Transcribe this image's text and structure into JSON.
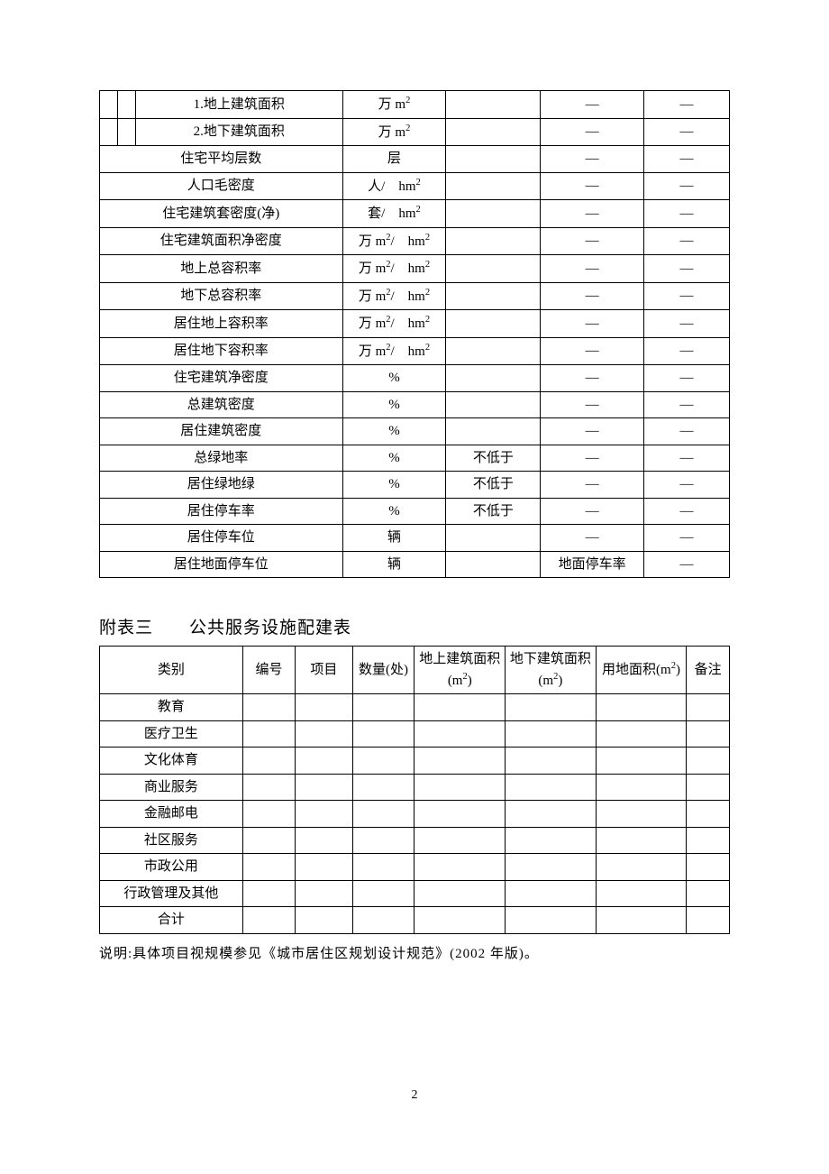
{
  "table1": {
    "rows": [
      {
        "indent": 2,
        "label": "1.地上建筑面积",
        "unit": "万 m²",
        "col3": "",
        "col4": "—",
        "col5": "—"
      },
      {
        "indent": 2,
        "label": "2.地下建筑面积",
        "unit": "万 m²",
        "col3": "",
        "col4": "—",
        "col5": "—"
      },
      {
        "indent": 0,
        "label": "住宅平均层数",
        "unit": "层",
        "col3": "",
        "col4": "—",
        "col5": "—"
      },
      {
        "indent": 0,
        "label": "人口毛密度",
        "unit": "人/　hm²",
        "col3": "",
        "col4": "—",
        "col5": "—"
      },
      {
        "indent": 0,
        "label": "住宅建筑套密度(净)",
        "unit": "套/　hm²",
        "col3": "",
        "col4": "—",
        "col5": "—"
      },
      {
        "indent": 0,
        "label": "住宅建筑面积净密度",
        "unit": "万 m²/　hm²",
        "col3": "",
        "col4": "—",
        "col5": "—"
      },
      {
        "indent": 0,
        "label": "地上总容积率",
        "unit": "万 m²/　hm²",
        "col3": "",
        "col4": "—",
        "col5": "—"
      },
      {
        "indent": 0,
        "label": "地下总容积率",
        "unit": "万 m²/　hm²",
        "col3": "",
        "col4": "—",
        "col5": "—"
      },
      {
        "indent": 0,
        "label": "居住地上容积率",
        "unit": "万 m²/　hm²",
        "col3": "",
        "col4": "—",
        "col5": "—"
      },
      {
        "indent": 0,
        "label": "居住地下容积率",
        "unit": "万 m²/　hm²",
        "col3": "",
        "col4": "—",
        "col5": "—"
      },
      {
        "indent": 0,
        "label": "住宅建筑净密度",
        "unit": "%",
        "col3": "",
        "col4": "—",
        "col5": "—"
      },
      {
        "indent": 0,
        "label": "总建筑密度",
        "unit": "%",
        "col3": "",
        "col4": "—",
        "col5": "—"
      },
      {
        "indent": 0,
        "label": "居住建筑密度",
        "unit": "%",
        "col3": "",
        "col4": "—",
        "col5": "—"
      },
      {
        "indent": 0,
        "label": "总绿地率",
        "unit": "%",
        "col3": "不低于",
        "col4": "—",
        "col5": "—"
      },
      {
        "indent": 0,
        "label": "居住绿地绿",
        "unit": "%",
        "col3": "不低于",
        "col4": "—",
        "col5": "—"
      },
      {
        "indent": 0,
        "label": "居住停车率",
        "unit": "%",
        "col3": "不低于",
        "col4": "—",
        "col5": "—"
      },
      {
        "indent": 0,
        "label": "居住停车位",
        "unit": "辆",
        "col3": "",
        "col4": "—",
        "col5": "—"
      },
      {
        "indent": 0,
        "label": "居住地面停车位",
        "unit": "辆",
        "col3": "",
        "col4": "地面停车率",
        "col5": "—"
      }
    ]
  },
  "heading2": "附表三　　公共服务设施配建表",
  "table2": {
    "headers": {
      "category": "类别",
      "number": "编号",
      "project": "项目",
      "quantity": "数量(处)",
      "above": "地上建筑面积(m²)",
      "below": "地下建筑面积(m²)",
      "land": "用地面积(m²)",
      "note": "备注"
    },
    "rows": [
      "教育",
      "医疗卫生",
      "文化体育",
      "商业服务",
      "金融邮电",
      "社区服务",
      "市政公用",
      "行政管理及其他",
      "合计"
    ]
  },
  "explanation": "说明:具体项目视规模参见《城市居住区规划设计规范》(2002 年版)。",
  "page_number": "2",
  "style": {
    "text_color": "#000000",
    "background_color": "#ffffff",
    "border_color": "#000000",
    "font_family": "SimSun",
    "body_fontsize": 15,
    "heading_fontsize": 19
  }
}
